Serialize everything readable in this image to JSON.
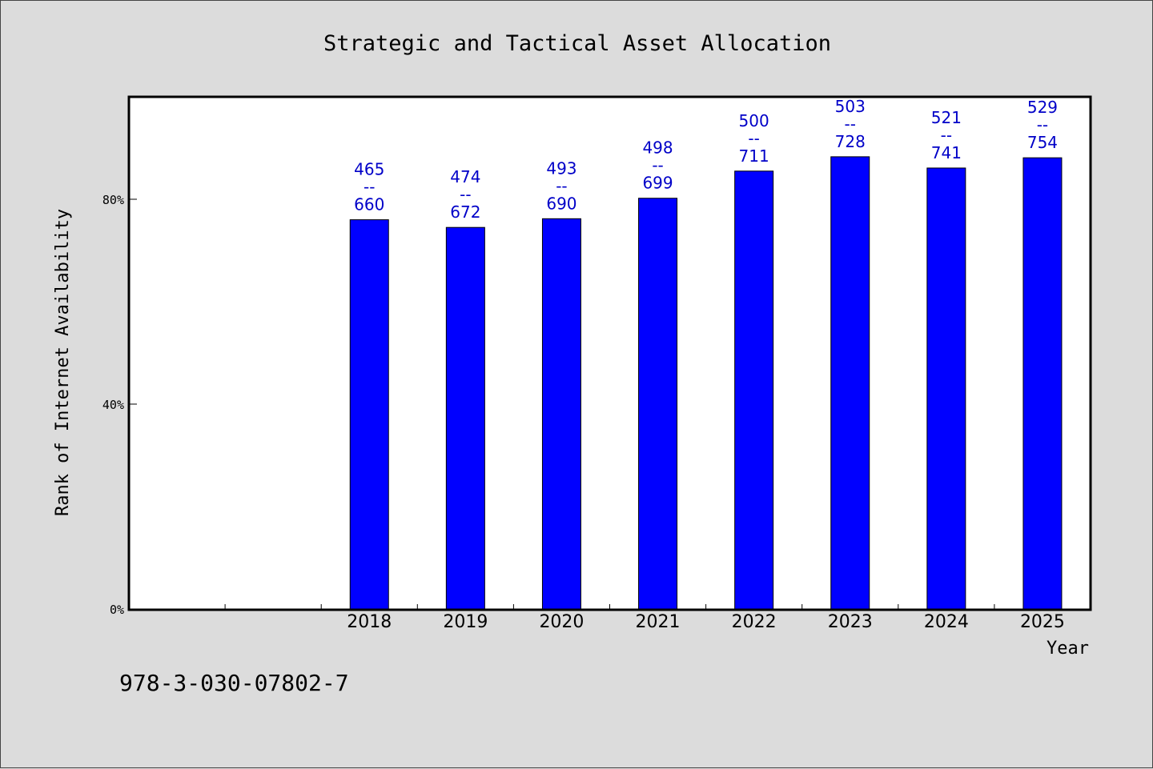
{
  "chart_data": {
    "type": "bar",
    "title": "Strategic and Tactical Asset Allocation",
    "xlabel": "Year",
    "ylabel": "Rank of Internet Availability",
    "categories": [
      "",
      "",
      "2018",
      "2019",
      "2020",
      "2021",
      "2022",
      "2023",
      "2024",
      "2025"
    ],
    "values": [
      null,
      null,
      76,
      74.5,
      76.2,
      80.2,
      85.5,
      88.3,
      86.1,
      88.1
    ],
    "data_labels": [
      null,
      null,
      [
        "465",
        "--",
        "660"
      ],
      [
        "474",
        "--",
        "672"
      ],
      [
        "493",
        "--",
        "690"
      ],
      [
        "498",
        "--",
        "699"
      ],
      [
        "500",
        "--",
        "711"
      ],
      [
        "503",
        "--",
        "728"
      ],
      [
        "521",
        "--",
        "741"
      ],
      [
        "529",
        "--",
        "754"
      ]
    ],
    "y_ticks": [
      {
        "value": 0,
        "label": "0%"
      },
      {
        "value": 40,
        "label": "40%"
      },
      {
        "value": 80,
        "label": "80%"
      }
    ],
    "ylim": [
      0,
      100
    ],
    "grid": false,
    "bar_color": "#0000ff",
    "label_color": "#0000c8"
  },
  "footer": {
    "isbn": "978-3-030-07802-7"
  }
}
